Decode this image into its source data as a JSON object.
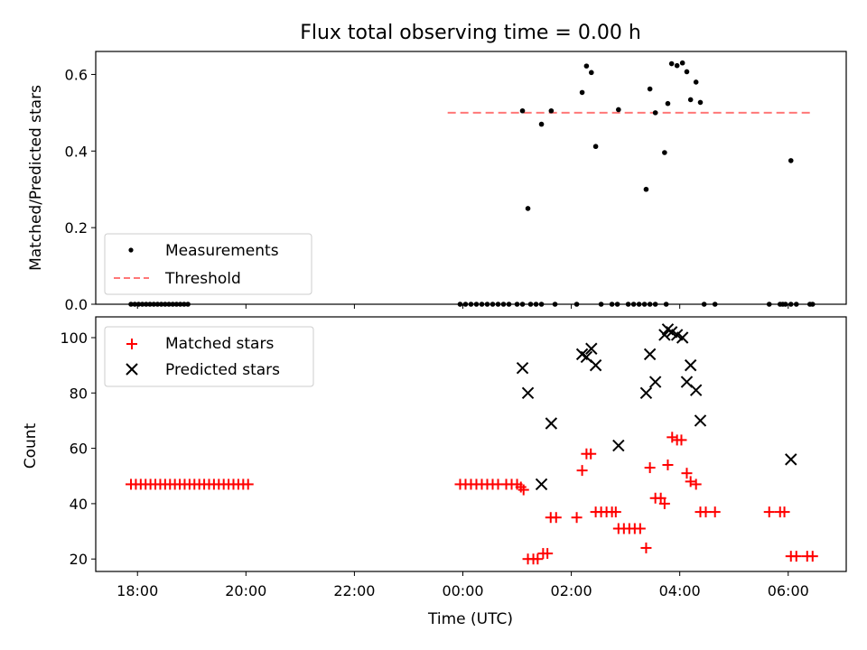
{
  "chart_data": [
    {
      "type": "scatter",
      "title": "Flux total observing time = 0.00 h",
      "ylabel": "Matched/Predicted stars",
      "xlabel": "",
      "x_unit": "hours from 00:00 UTC",
      "xlim": [
        -20.77,
        7.07
      ],
      "ylim": [
        0,
        0.66
      ],
      "yticks": [
        0.0,
        0.2,
        0.4,
        0.6
      ],
      "ytick_labels": [
        "0.0",
        "0.2",
        "0.4",
        "0.6"
      ],
      "grid": false,
      "legend_position": "lower-left",
      "legend": [
        "Measurements",
        "Threshold"
      ],
      "colors": {
        "points": "#000000",
        "threshold": "#ff7777"
      },
      "series": [
        {
          "name": "Measurements",
          "marker": "dot",
          "points": [
            [
              -6.12,
              0
            ],
            [
              -6.05,
              0
            ],
            [
              -5.98,
              0
            ],
            [
              -5.91,
              0
            ],
            [
              -5.84,
              0
            ],
            [
              -5.77,
              0
            ],
            [
              -5.7,
              0
            ],
            [
              -5.63,
              0
            ],
            [
              -5.56,
              0
            ],
            [
              -5.49,
              0
            ],
            [
              -5.42,
              0
            ],
            [
              -5.35,
              0
            ],
            [
              -5.28,
              0
            ],
            [
              -5.21,
              0
            ],
            [
              -5.14,
              0
            ],
            [
              -5.07,
              0
            ],
            [
              -0.05,
              0
            ],
            [
              0.05,
              0
            ],
            [
              0.15,
              0
            ],
            [
              0.25,
              0
            ],
            [
              0.35,
              0
            ],
            [
              0.45,
              0
            ],
            [
              0.55,
              0
            ],
            [
              0.65,
              0
            ],
            [
              0.75,
              0
            ],
            [
              0.85,
              0
            ],
            [
              1.0,
              0
            ],
            [
              1.1,
              0
            ],
            [
              1.25,
              0
            ],
            [
              1.35,
              0
            ],
            [
              1.45,
              0
            ],
            [
              1.7,
              0
            ],
            [
              2.1,
              0
            ],
            [
              2.55,
              0
            ],
            [
              2.75,
              0
            ],
            [
              2.85,
              0
            ],
            [
              3.05,
              0
            ],
            [
              3.15,
              0
            ],
            [
              3.25,
              0
            ],
            [
              3.35,
              0
            ],
            [
              3.45,
              0
            ],
            [
              3.55,
              0
            ],
            [
              3.75,
              0
            ],
            [
              4.45,
              0
            ],
            [
              4.65,
              0
            ],
            [
              5.65,
              0
            ],
            [
              5.85,
              0
            ],
            [
              5.9,
              0
            ],
            [
              5.95,
              0
            ],
            [
              6.05,
              0
            ],
            [
              6.15,
              0
            ],
            [
              6.4,
              0
            ],
            [
              6.45,
              0
            ],
            [
              1.1,
              0.505
            ],
            [
              1.2,
              0.25
            ],
            [
              1.45,
              0.47
            ],
            [
              1.63,
              0.505
            ],
            [
              2.2,
              0.553
            ],
            [
              2.28,
              0.622
            ],
            [
              2.37,
              0.605
            ],
            [
              2.45,
              0.412
            ],
            [
              2.87,
              0.508
            ],
            [
              3.38,
              0.3
            ],
            [
              3.45,
              0.562
            ],
            [
              3.55,
              0.5
            ],
            [
              3.72,
              0.396
            ],
            [
              3.78,
              0.524
            ],
            [
              3.85,
              0.628
            ],
            [
              3.95,
              0.623
            ],
            [
              4.05,
              0.63
            ],
            [
              4.13,
              0.607
            ],
            [
              4.2,
              0.534
            ],
            [
              4.3,
              0.58
            ],
            [
              4.38,
              0.527
            ],
            [
              6.05,
              0.375
            ]
          ]
        },
        {
          "name": "Threshold",
          "line": "dashed",
          "x": [
            -0.28,
            6.47
          ],
          "y": [
            0.5,
            0.5
          ]
        }
      ]
    },
    {
      "type": "scatter",
      "title": "",
      "xlabel": "Time (UTC)",
      "ylabel": "Count",
      "x_unit": "hours from 00:00 UTC",
      "xlim": [
        -6.77,
        7.07
      ],
      "ylim": [
        15.5,
        107.5
      ],
      "xticks": [
        -6,
        -4,
        -2,
        0,
        2,
        4,
        6
      ],
      "xtick_labels": [
        "18:00",
        "20:00",
        "22:00",
        "00:00",
        "02:00",
        "04:00",
        "06:00"
      ],
      "yticks": [
        20,
        40,
        60,
        80,
        100
      ],
      "ytick_labels": [
        "20",
        "40",
        "60",
        "80",
        "100"
      ],
      "grid": false,
      "legend_position": "upper-left",
      "legend": [
        "Matched stars",
        "Predicted stars"
      ],
      "colors": {
        "matched": "#ff0000",
        "predicted": "#000000"
      },
      "series": [
        {
          "name": "Matched stars",
          "marker": "plus",
          "points": [
            [
              -6.12,
              47
            ],
            [
              -6.03,
              47
            ],
            [
              -5.94,
              47
            ],
            [
              -5.85,
              47
            ],
            [
              -5.76,
              47
            ],
            [
              -5.67,
              47
            ],
            [
              -5.58,
              47
            ],
            [
              -5.49,
              47
            ],
            [
              -5.4,
              47
            ],
            [
              -5.31,
              47
            ],
            [
              -5.22,
              47
            ],
            [
              -5.13,
              47
            ],
            [
              -5.04,
              47
            ],
            [
              -4.95,
              47
            ],
            [
              -4.86,
              47
            ],
            [
              -4.77,
              47
            ],
            [
              -4.68,
              47
            ],
            [
              -4.59,
              47
            ],
            [
              -4.5,
              47
            ],
            [
              -4.41,
              47
            ],
            [
              -4.32,
              47
            ],
            [
              -4.23,
              47
            ],
            [
              -4.14,
              47
            ],
            [
              -4.05,
              47
            ],
            [
              -3.96,
              47
            ],
            [
              -0.05,
              47
            ],
            [
              0.05,
              47
            ],
            [
              0.15,
              47
            ],
            [
              0.25,
              47
            ],
            [
              0.35,
              47
            ],
            [
              0.45,
              47
            ],
            [
              0.55,
              47
            ],
            [
              0.65,
              47
            ],
            [
              0.8,
              47
            ],
            [
              0.9,
              47
            ],
            [
              1.0,
              47
            ],
            [
              1.07,
              46
            ],
            [
              1.12,
              45
            ],
            [
              1.2,
              20
            ],
            [
              1.3,
              20
            ],
            [
              1.38,
              20
            ],
            [
              1.48,
              22
            ],
            [
              1.56,
              22
            ],
            [
              1.62,
              35
            ],
            [
              1.72,
              35
            ],
            [
              2.1,
              35
            ],
            [
              2.2,
              52
            ],
            [
              2.28,
              58
            ],
            [
              2.36,
              58
            ],
            [
              2.45,
              37
            ],
            [
              2.55,
              37
            ],
            [
              2.65,
              37
            ],
            [
              2.75,
              37
            ],
            [
              2.82,
              37
            ],
            [
              2.87,
              31
            ],
            [
              2.97,
              31
            ],
            [
              3.07,
              31
            ],
            [
              3.17,
              31
            ],
            [
              3.27,
              31
            ],
            [
              3.38,
              24
            ],
            [
              3.45,
              53
            ],
            [
              3.55,
              42
            ],
            [
              3.65,
              42
            ],
            [
              3.72,
              40
            ],
            [
              3.78,
              54
            ],
            [
              3.86,
              64
            ],
            [
              3.95,
              63
            ],
            [
              4.03,
              63
            ],
            [
              4.13,
              51
            ],
            [
              4.2,
              48
            ],
            [
              4.3,
              47
            ],
            [
              4.38,
              37
            ],
            [
              4.48,
              37
            ],
            [
              4.65,
              37
            ],
            [
              5.65,
              37
            ],
            [
              5.85,
              37
            ],
            [
              5.93,
              37
            ],
            [
              6.05,
              21
            ],
            [
              6.15,
              21
            ],
            [
              6.35,
              21
            ],
            [
              6.45,
              21
            ]
          ]
        },
        {
          "name": "Predicted stars",
          "marker": "x",
          "points": [
            [
              1.1,
              89
            ],
            [
              1.2,
              80
            ],
            [
              1.45,
              47
            ],
            [
              1.63,
              69
            ],
            [
              2.2,
              94
            ],
            [
              2.28,
              93
            ],
            [
              2.37,
              96
            ],
            [
              2.45,
              90
            ],
            [
              2.87,
              61
            ],
            [
              3.38,
              80
            ],
            [
              3.45,
              94
            ],
            [
              3.55,
              84
            ],
            [
              3.72,
              101
            ],
            [
              3.78,
              103
            ],
            [
              3.85,
              102
            ],
            [
              3.95,
              101
            ],
            [
              4.05,
              100
            ],
            [
              4.13,
              84
            ],
            [
              4.2,
              90
            ],
            [
              4.3,
              81
            ],
            [
              4.38,
              70
            ],
            [
              6.05,
              56
            ]
          ]
        }
      ]
    }
  ]
}
